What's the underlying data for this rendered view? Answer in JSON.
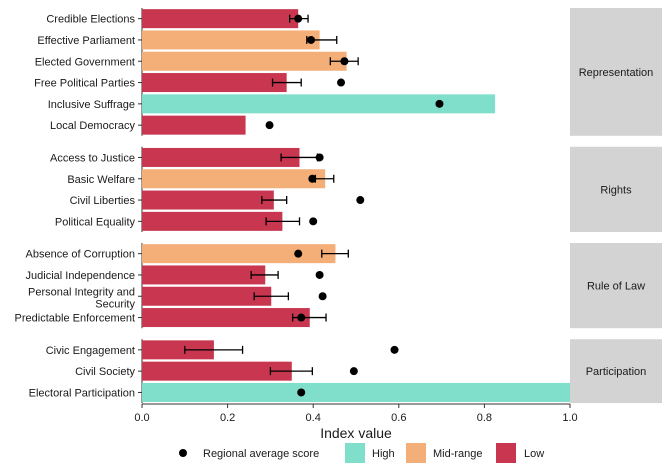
{
  "chart_data": {
    "type": "bar",
    "orientation": "horizontal",
    "xlabel": "Index value",
    "xlim": [
      0,
      1
    ],
    "x_ticks": [
      "0.0",
      "0.2",
      "0.4",
      "0.6",
      "0.8",
      "1.0"
    ],
    "grid": false,
    "legend": {
      "position": "bottom",
      "entries": [
        {
          "key": "regional",
          "label": "Regional average score",
          "shape": "dot",
          "color": "#000000"
        },
        {
          "key": "High",
          "label": "High",
          "shape": "swatch",
          "color": "#7fdfcb"
        },
        {
          "key": "Mid-range",
          "label": "Mid-range",
          "shape": "swatch",
          "color": "#f4ae78"
        },
        {
          "key": "Low",
          "label": "Low",
          "shape": "swatch",
          "color": "#c8374f"
        }
      ]
    },
    "colors": {
      "High": "#7fdfcb",
      "Mid-range": "#f4ae78",
      "Low": "#c8374f",
      "panel_strip": "#d3d3d3"
    },
    "panels": [
      {
        "name": "Representation",
        "rows": [
          {
            "label": "Credible Elections",
            "value": 0.365,
            "category": "Low",
            "regional_avg": 0.365,
            "ci": [
              0.345,
              0.388
            ]
          },
          {
            "label": "Effective Parliament",
            "value": 0.415,
            "category": "Mid-range",
            "regional_avg": 0.395,
            "ci": [
              0.385,
              0.455
            ]
          },
          {
            "label": "Elected Government",
            "value": 0.478,
            "category": "Mid-range",
            "regional_avg": 0.473,
            "ci": [
              0.44,
              0.505
            ]
          },
          {
            "label": "Free Political Parties",
            "value": 0.338,
            "category": "Low",
            "regional_avg": 0.465,
            "ci": [
              0.305,
              0.372
            ]
          },
          {
            "label": "Inclusive Suffrage",
            "value": 0.825,
            "category": "High",
            "regional_avg": 0.695,
            "ci": null
          },
          {
            "label": "Local Democracy",
            "value": 0.242,
            "category": "Low",
            "regional_avg": 0.298,
            "ci": null
          }
        ]
      },
      {
        "name": "Rights",
        "rows": [
          {
            "label": "Access to Justice",
            "value": 0.368,
            "category": "Low",
            "regional_avg": 0.415,
            "ci": [
              0.325,
              0.41
            ]
          },
          {
            "label": "Basic Welfare",
            "value": 0.428,
            "category": "Mid-range",
            "regional_avg": 0.398,
            "ci": [
              0.405,
              0.448
            ]
          },
          {
            "label": "Civil Liberties",
            "value": 0.308,
            "category": "Low",
            "regional_avg": 0.51,
            "ci": [
              0.28,
              0.338
            ]
          },
          {
            "label": "Political Equality",
            "value": 0.328,
            "category": "Low",
            "regional_avg": 0.4,
            "ci": [
              0.29,
              0.368
            ]
          }
        ]
      },
      {
        "name": "Rule of Law",
        "rows": [
          {
            "label": "Absence of Corruption",
            "value": 0.452,
            "category": "Mid-range",
            "regional_avg": 0.365,
            "ci": [
              0.42,
              0.482
            ]
          },
          {
            "label": "Judicial Independence",
            "value": 0.288,
            "category": "Low",
            "regional_avg": 0.415,
            "ci": [
              0.255,
              0.318
            ]
          },
          {
            "label": "Personal Integrity and Security",
            "value": 0.302,
            "category": "Low",
            "regional_avg": 0.422,
            "ci": [
              0.262,
              0.342
            ]
          },
          {
            "label": "Predictable Enforcement",
            "value": 0.392,
            "category": "Low",
            "regional_avg": 0.372,
            "ci": [
              0.352,
              0.43
            ]
          }
        ]
      },
      {
        "name": "Participation",
        "rows": [
          {
            "label": "Civic Engagement",
            "value": 0.168,
            "category": "Low",
            "regional_avg": 0.59,
            "ci": [
              0.1,
              0.235
            ]
          },
          {
            "label": "Civil Society",
            "value": 0.35,
            "category": "Low",
            "regional_avg": 0.495,
            "ci": [
              0.3,
              0.398
            ]
          },
          {
            "label": "Electoral Participation",
            "value": 1.0,
            "category": "High",
            "regional_avg": 0.372,
            "ci": null
          }
        ]
      }
    ]
  }
}
